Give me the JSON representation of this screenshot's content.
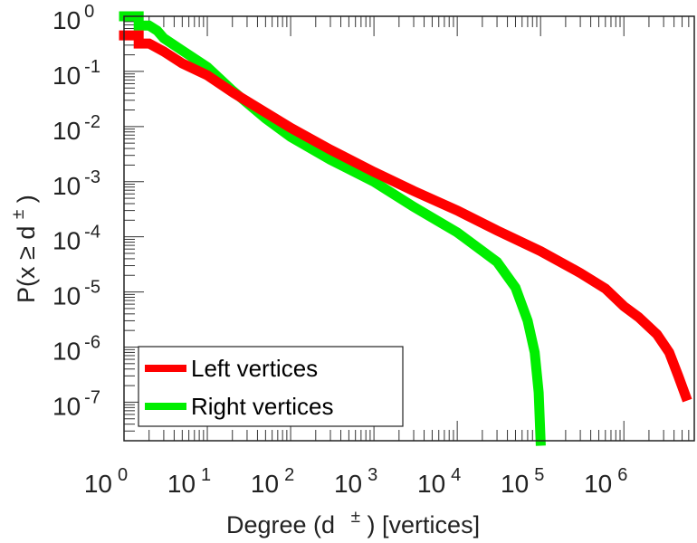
{
  "chart_data": {
    "type": "line",
    "xscale": "log",
    "yscale": "log",
    "xlim": [
      1,
      7000000
    ],
    "ylim": [
      2e-08,
      1
    ],
    "x_ticks": [
      {
        "base": "10",
        "exp": "0",
        "value": 1
      },
      {
        "base": "10",
        "exp": "1",
        "value": 10
      },
      {
        "base": "10",
        "exp": "2",
        "value": 100
      },
      {
        "base": "10",
        "exp": "3",
        "value": 1000
      },
      {
        "base": "10",
        "exp": "4",
        "value": 10000
      },
      {
        "base": "10",
        "exp": "5",
        "value": 100000
      },
      {
        "base": "10",
        "exp": "6",
        "value": 1000000
      }
    ],
    "y_ticks": [
      {
        "base": "10",
        "exp": "0",
        "value": 1
      },
      {
        "base": "10",
        "exp": "-1",
        "value": 0.1
      },
      {
        "base": "10",
        "exp": "-2",
        "value": 0.01
      },
      {
        "base": "10",
        "exp": "-3",
        "value": 0.001
      },
      {
        "base": "10",
        "exp": "-4",
        "value": 0.0001
      },
      {
        "base": "10",
        "exp": "-5",
        "value": 1e-05
      },
      {
        "base": "10",
        "exp": "-6",
        "value": 1e-06
      },
      {
        "base": "10",
        "exp": "-7",
        "value": 1e-07
      }
    ],
    "xlabel": {
      "pre": "Degree (d",
      "sup": "±",
      "post": ") [vertices]"
    },
    "ylabel": {
      "pre": "P(x ≥ d",
      "sup": "±",
      "post": ")"
    },
    "legend_position": "bottom-left",
    "series": [
      {
        "name": "Left vertices",
        "color": "#ff0000",
        "points": [
          [
            1,
            0.45
          ],
          [
            1.5,
            0.45
          ],
          [
            1.5,
            0.32
          ],
          [
            2,
            0.32
          ],
          [
            3,
            0.23
          ],
          [
            5,
            0.14
          ],
          [
            10,
            0.085
          ],
          [
            20,
            0.042
          ],
          [
            50,
            0.018
          ],
          [
            100,
            0.0095
          ],
          [
            300,
            0.0038
          ],
          [
            1000,
            0.0015
          ],
          [
            3000,
            0.00068
          ],
          [
            10000,
            0.0003
          ],
          [
            30000,
            0.00013
          ],
          [
            100000,
            5.5e-05
          ],
          [
            300000,
            2.2e-05
          ],
          [
            600000,
            1.15e-05
          ],
          [
            1000000,
            5.5e-06
          ],
          [
            1500000,
            3.5e-06
          ],
          [
            2500000,
            1.7e-06
          ],
          [
            3500000,
            8e-07
          ],
          [
            4500000,
            3e-07
          ],
          [
            5500000,
            1.3e-07
          ]
        ]
      },
      {
        "name": "Right vertices",
        "color": "#00ee00",
        "points": [
          [
            1,
            1
          ],
          [
            1.5,
            1
          ],
          [
            1.5,
            0.68
          ],
          [
            2,
            0.68
          ],
          [
            2.5,
            0.55
          ],
          [
            3,
            0.4
          ],
          [
            5,
            0.24
          ],
          [
            10,
            0.12
          ],
          [
            20,
            0.045
          ],
          [
            50,
            0.014
          ],
          [
            100,
            0.0065
          ],
          [
            300,
            0.0025
          ],
          [
            1000,
            0.001
          ],
          [
            3000,
            0.00035
          ],
          [
            10000,
            0.00012
          ],
          [
            30000,
            3.5e-05
          ],
          [
            50000,
            1.2e-05
          ],
          [
            70000,
            3e-06
          ],
          [
            85000,
            8e-07
          ],
          [
            95000,
            1.5e-07
          ],
          [
            100000,
            2e-08
          ]
        ]
      }
    ]
  }
}
